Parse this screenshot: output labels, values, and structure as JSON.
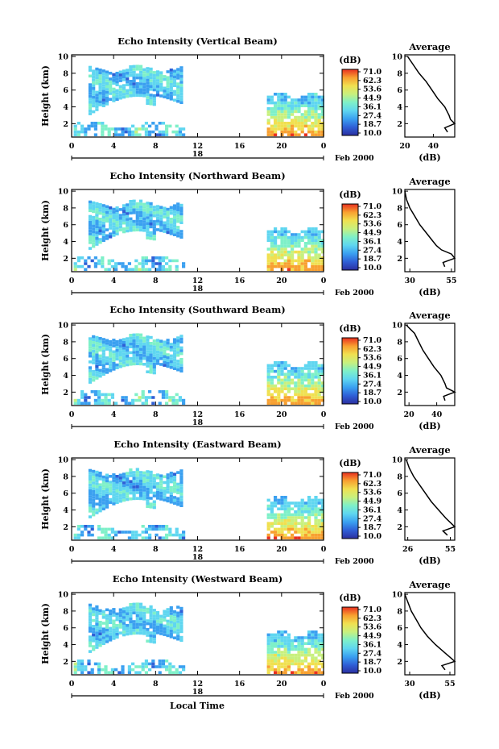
{
  "colors": {
    "scale": [
      "#2b2fa0",
      "#2f5fd6",
      "#3aa0f0",
      "#5fd6f0",
      "#7ef0c8",
      "#c8f07e",
      "#f0e050",
      "#f8a030",
      "#e83020"
    ],
    "axis": "#000000",
    "background": "#ffffff"
  },
  "common": {
    "date_label": "Feb 2000",
    "x_axis_label": "Local Time",
    "y_axis_label": "Height (km)",
    "colorbar_unit": "(dB)",
    "colorbar_ticks": [
      "71.0",
      "62.3",
      "53.6",
      "44.9",
      "36.1",
      "27.4",
      "18.7",
      "10.0"
    ],
    "average_title": "Average",
    "average_xlabel": "(dB)"
  },
  "chart_data": [
    {
      "type": "heatmap",
      "title": "Echo Intensity (Vertical Beam)",
      "x_ticks": [
        "0",
        "4",
        "8",
        "12",
        "16",
        "20",
        "0"
      ],
      "xlim": [
        0,
        24
      ],
      "y_ticks": [
        "10",
        "8",
        "6",
        "4",
        "2"
      ],
      "ylim": [
        0.4,
        10.2
      ],
      "day_label": "18",
      "colorbar_range": [
        10.0,
        71.0
      ],
      "average": {
        "type": "line",
        "x_ticks": [
          "20",
          "40"
        ],
        "xlim": [
          20,
          55
        ],
        "heights": [
          10,
          9,
          8,
          7,
          6,
          5,
          4,
          3,
          2.5,
          2,
          1.5,
          1
        ],
        "values": [
          22,
          26,
          30,
          35,
          39,
          43,
          48,
          51,
          52,
          55,
          48,
          50
        ]
      }
    },
    {
      "type": "heatmap",
      "title": "Echo Intensity (Northward Beam)",
      "x_ticks": [
        "0",
        "4",
        "8",
        "12",
        "16",
        "20",
        "0"
      ],
      "xlim": [
        0,
        24
      ],
      "y_ticks": [
        "10",
        "8",
        "6",
        "4",
        "2"
      ],
      "ylim": [
        0.4,
        10.2
      ],
      "day_label": "18",
      "colorbar_range": [
        10.0,
        71.0
      ],
      "average": {
        "type": "line",
        "x_ticks": [
          "30",
          "55"
        ],
        "xlim": [
          27,
          57
        ],
        "heights": [
          10,
          9,
          8,
          7,
          6,
          5,
          4,
          3.5,
          3,
          2.5,
          2,
          1.5,
          1
        ],
        "values": [
          27,
          28,
          30,
          33,
          36,
          40,
          44,
          46,
          49,
          55,
          57,
          50,
          51
        ]
      }
    },
    {
      "type": "heatmap",
      "title": "Echo Intensity (Southward Beam)",
      "x_ticks": [
        "0",
        "4",
        "8",
        "12",
        "16",
        "20",
        "0"
      ],
      "xlim": [
        0,
        24
      ],
      "y_ticks": [
        "10",
        "8",
        "6",
        "4",
        "2"
      ],
      "ylim": [
        0.4,
        10.2
      ],
      "day_label": "18",
      "colorbar_range": [
        10.0,
        71.0
      ],
      "average": {
        "type": "line",
        "x_ticks": [
          "20",
          "40"
        ],
        "xlim": [
          17,
          53
        ],
        "heights": [
          10,
          9.5,
          9,
          8,
          7,
          6,
          5,
          4,
          3,
          2.5,
          2,
          1.5,
          1
        ],
        "values": [
          18,
          21,
          24,
          27,
          30,
          34,
          38,
          43,
          46,
          47,
          53,
          45,
          46
        ]
      }
    },
    {
      "type": "heatmap",
      "title": "Echo Intensity (Eastward Beam)",
      "x_ticks": [
        "0",
        "4",
        "8",
        "12",
        "16",
        "20",
        "0"
      ],
      "xlim": [
        0,
        24
      ],
      "y_ticks": [
        "10",
        "8",
        "6",
        "4",
        "2"
      ],
      "ylim": [
        0.4,
        10.2
      ],
      "day_label": "18",
      "colorbar_range": [
        10.0,
        71.0
      ],
      "average": {
        "type": "line",
        "x_ticks": [
          "26",
          "55"
        ],
        "xlim": [
          24,
          58
        ],
        "heights": [
          10,
          9,
          8,
          7,
          6,
          5,
          4,
          3,
          2.5,
          2,
          1.5,
          1
        ],
        "values": [
          25,
          27,
          30,
          34,
          38,
          42,
          47,
          52,
          55,
          58,
          50,
          53
        ]
      }
    },
    {
      "type": "heatmap",
      "title": "Echo Intensity (Westward Beam)",
      "x_ticks": [
        "0",
        "4",
        "8",
        "12",
        "16",
        "20",
        "0"
      ],
      "xlim": [
        0,
        24
      ],
      "y_ticks": [
        "10",
        "8",
        "6",
        "4",
        "2"
      ],
      "ylim": [
        0.4,
        10.2
      ],
      "day_label": "18",
      "colorbar_range": [
        10.0,
        71.0
      ],
      "average": {
        "type": "line",
        "x_ticks": [
          "30",
          "55"
        ],
        "xlim": [
          27,
          58
        ],
        "heights": [
          10,
          9,
          8,
          7,
          6,
          5,
          4,
          3,
          2.5,
          2,
          1.5,
          1
        ],
        "values": [
          27,
          29,
          31,
          34,
          37,
          41,
          46,
          52,
          55,
          58,
          50,
          52
        ]
      }
    }
  ]
}
